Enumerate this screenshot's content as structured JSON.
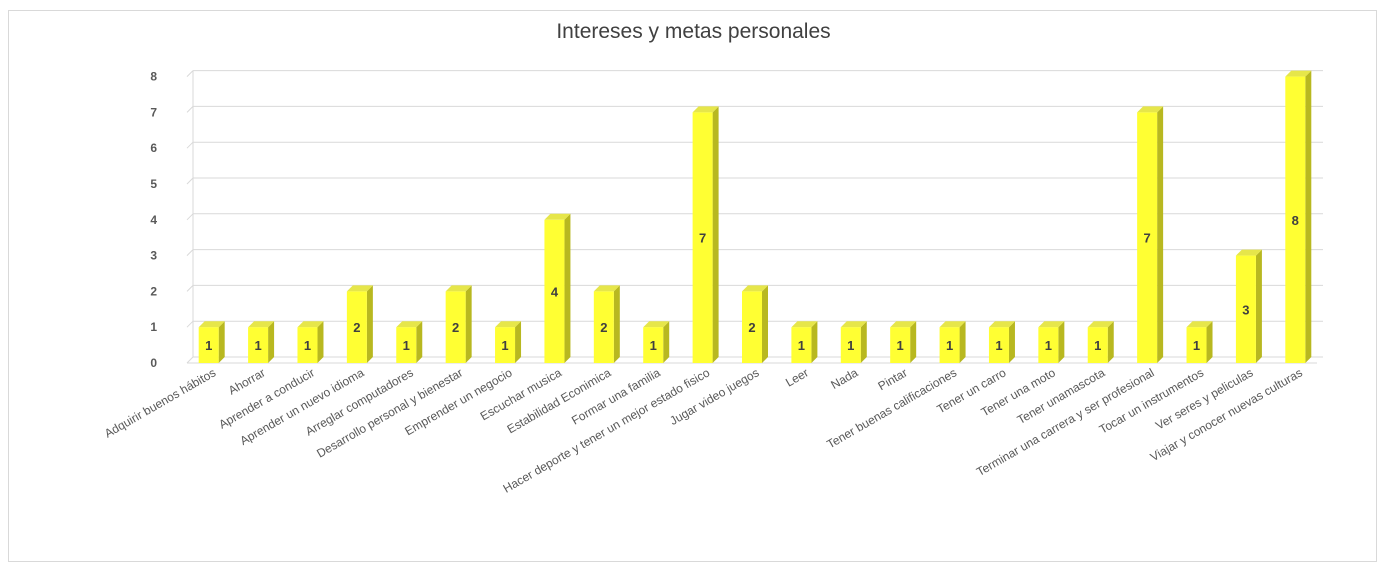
{
  "chart_data": {
    "type": "bar",
    "title": "Intereses y metas personales",
    "xlabel": "",
    "ylabel": "",
    "ylim": [
      0,
      8
    ],
    "yticks": [
      0,
      1,
      2,
      3,
      4,
      5,
      6,
      7,
      8
    ],
    "grid": true,
    "legend": "none",
    "bar_color": "#ffff33",
    "bar_side_color": "#b8b820",
    "bar_top_color": "#e6e64a",
    "categories": [
      "Adquirir buenos hábitos",
      "Ahorrar",
      "Aprender a conducir",
      "Aprender un nuevo idioma",
      "Arreglar  computadores",
      "Desarrollo personal y bienestar",
      "Emprender un negocio",
      "Escuchar musica",
      "Estabilidad Econimica",
      "Formar una familia",
      "Hacer deporte y tener un mejor estado fisico",
      "Jugar video juegos",
      "Leer",
      "Nada",
      "Pintar",
      "Tener buenas calificaciones",
      "Tener un carro",
      "Tener una moto",
      "Tener unamascota",
      "Terminar una carrera y ser profesional",
      "Tocar un instrumentos",
      "Ver seres y peliculas",
      "Viajar y conocer nuevas culturas"
    ],
    "values": [
      1,
      1,
      1,
      2,
      1,
      2,
      1,
      4,
      2,
      1,
      7,
      2,
      1,
      1,
      1,
      1,
      1,
      1,
      1,
      7,
      1,
      3,
      8
    ]
  }
}
